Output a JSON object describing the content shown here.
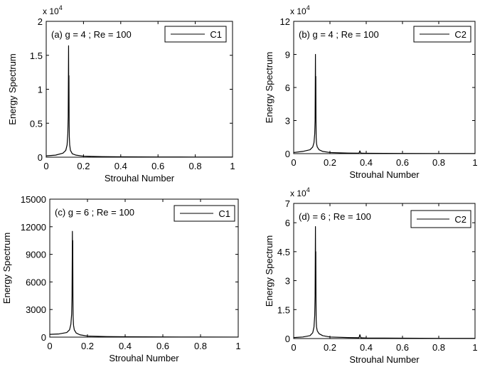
{
  "chart_data": [
    {
      "type": "line",
      "panel_label": "(a) g = 4 ; Re = 100",
      "legend": "C1",
      "legend_position": "top-right",
      "multiplier": "x 10",
      "multiplier_exponent": "4",
      "xlabel": "Strouhal Number",
      "ylabel": "Energy Spectrum",
      "xlim": [
        0,
        1
      ],
      "ylim": [
        0,
        2
      ],
      "xticks": [
        0,
        0.2,
        0.4,
        0.6,
        0.8,
        1
      ],
      "xtick_labels": [
        "0",
        "0.2",
        "0.4",
        "0.6",
        "0.8",
        "1"
      ],
      "yticks": [
        0,
        0.5,
        1,
        1.5,
        2
      ],
      "ytick_labels": [
        "0",
        "0.5",
        "1",
        "1.5",
        "2"
      ],
      "grid": false,
      "x": [
        0,
        0.05,
        0.09,
        0.105,
        0.112,
        0.116,
        0.118,
        0.12,
        0.121,
        0.122,
        0.123,
        0.124,
        0.126,
        0.13,
        0.14,
        0.16,
        0.2,
        0.3,
        0.4,
        0.6,
        0.8,
        1
      ],
      "y": [
        0.02,
        0.03,
        0.06,
        0.1,
        0.18,
        0.35,
        0.6,
        1.64,
        0.9,
        1.2,
        0.5,
        0.3,
        0.18,
        0.1,
        0.05,
        0.03,
        0.015,
        0.008,
        0.005,
        0.003,
        0.002,
        0.001
      ]
    },
    {
      "type": "line",
      "panel_label": "(b) g = 4 ; Re = 100",
      "legend": "C2",
      "legend_position": "top-right",
      "multiplier": "x 10",
      "multiplier_exponent": "4",
      "xlabel": "Strouhal Number",
      "ylabel": "Energy Spectrum",
      "xlim": [
        0,
        1
      ],
      "ylim": [
        0,
        12
      ],
      "xticks": [
        0,
        0.2,
        0.4,
        0.6,
        0.8,
        1
      ],
      "xtick_labels": [
        "0",
        "0.2",
        "0.4",
        "0.6",
        "0.8",
        "1"
      ],
      "yticks": [
        0,
        3,
        6,
        9,
        12
      ],
      "ytick_labels": [
        "0",
        "3",
        "6",
        "9",
        "12"
      ],
      "grid": false,
      "x": [
        0,
        0.05,
        0.09,
        0.105,
        0.112,
        0.116,
        0.118,
        0.12,
        0.121,
        0.122,
        0.123,
        0.124,
        0.126,
        0.13,
        0.14,
        0.16,
        0.2,
        0.3,
        0.36,
        0.365,
        0.37,
        0.4,
        0.6,
        0.8,
        1
      ],
      "y": [
        0.1,
        0.2,
        0.35,
        0.6,
        1.0,
        1.8,
        3.0,
        9.0,
        5.0,
        7.0,
        3.0,
        1.5,
        0.9,
        0.6,
        0.35,
        0.2,
        0.1,
        0.05,
        0.04,
        0.25,
        0.04,
        0.03,
        0.02,
        0.01,
        0.01
      ]
    },
    {
      "type": "line",
      "panel_label": "(c) g = 6 ; Re = 100",
      "legend": "C1",
      "legend_position": "top-right",
      "xlabel": "Strouhal Number",
      "ylabel": "Energy Spectrum",
      "xlim": [
        0,
        1
      ],
      "ylim": [
        0,
        15000
      ],
      "xticks": [
        0,
        0.2,
        0.4,
        0.6,
        0.8,
        1
      ],
      "xtick_labels": [
        "0",
        "0.2",
        "0.4",
        "0.6",
        "0.8",
        "1"
      ],
      "yticks": [
        0,
        3000,
        6000,
        9000,
        12000,
        15000
      ],
      "ytick_labels": [
        "0",
        "3000",
        "6000",
        "9000",
        "12000",
        "15000"
      ],
      "grid": false,
      "x": [
        0,
        0.05,
        0.09,
        0.105,
        0.112,
        0.116,
        0.118,
        0.12,
        0.121,
        0.122,
        0.123,
        0.124,
        0.126,
        0.13,
        0.14,
        0.16,
        0.2,
        0.3,
        0.4,
        0.6,
        0.8,
        1
      ],
      "y": [
        300,
        350,
        500,
        800,
        1400,
        2500,
        4500,
        11500,
        7200,
        10500,
        4000,
        2200,
        1300,
        800,
        450,
        250,
        120,
        60,
        40,
        20,
        10,
        5
      ]
    },
    {
      "type": "line",
      "panel_label": "(d) = 6 ; Re = 100",
      "legend": "C2",
      "legend_position": "top-right",
      "multiplier": "x 10",
      "multiplier_exponent": "4",
      "xlabel": "Strouhal Number",
      "ylabel": "Energy Spectrum",
      "xlim": [
        0,
        1
      ],
      "ylim": [
        0,
        7
      ],
      "xticks": [
        0,
        0.2,
        0.4,
        0.6,
        0.8,
        1
      ],
      "xtick_labels": [
        "0",
        "0.2",
        "0.4",
        "0.6",
        "0.8",
        "1"
      ],
      "yticks": [
        0,
        1.5,
        3,
        4.5,
        6,
        7
      ],
      "ytick_labels": [
        "0",
        "1.5",
        "3",
        "4.5",
        "6",
        "7"
      ],
      "grid": false,
      "x": [
        0,
        0.05,
        0.09,
        0.105,
        0.112,
        0.116,
        0.118,
        0.12,
        0.121,
        0.122,
        0.123,
        0.124,
        0.126,
        0.13,
        0.14,
        0.16,
        0.2,
        0.3,
        0.36,
        0.365,
        0.37,
        0.4,
        0.6,
        0.8,
        1
      ],
      "y": [
        0.05,
        0.08,
        0.15,
        0.3,
        0.6,
        1.2,
        2.2,
        5.8,
        3.5,
        4.5,
        2.0,
        1.0,
        0.6,
        0.4,
        0.25,
        0.15,
        0.08,
        0.05,
        0.04,
        0.2,
        0.04,
        0.03,
        0.02,
        0.01,
        0.01
      ]
    }
  ]
}
